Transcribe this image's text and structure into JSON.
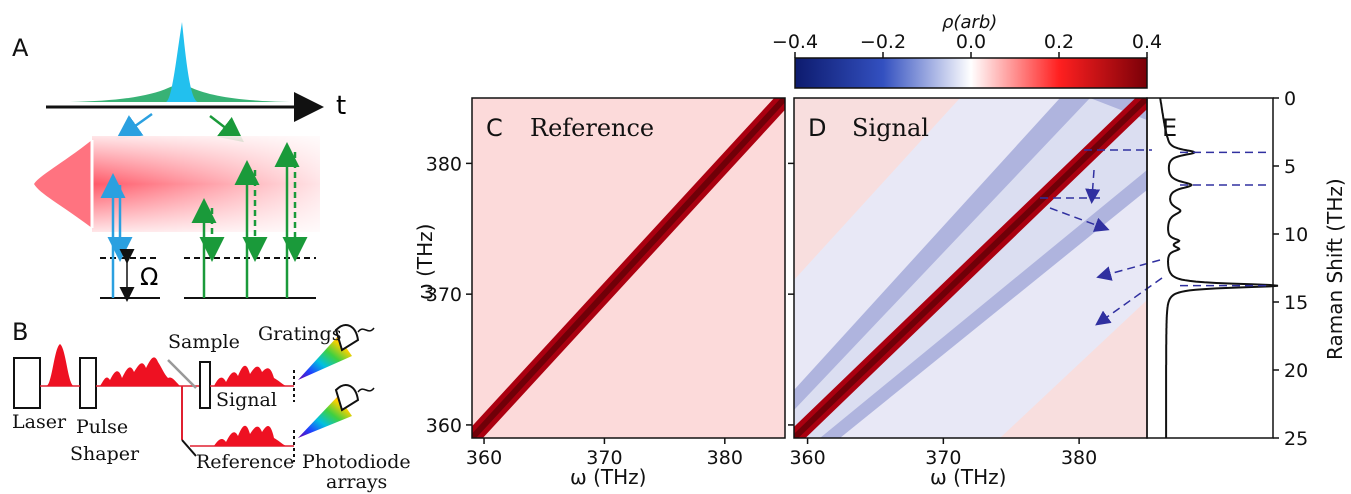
{
  "panels": {
    "a": "A",
    "b": "B",
    "c": "C",
    "d": "D",
    "e": "E"
  },
  "schematic": {
    "time_label": "t",
    "omega_label": "Ω",
    "sample": "Sample",
    "gratings": "Gratings",
    "signal": "Signal",
    "laser": "Laser",
    "pulse": "Pulse",
    "shaper": "Shaper",
    "reference": "Reference",
    "photodiode": "Photodiode",
    "arrays": "arrays"
  },
  "colorbar": {
    "label": "ρ(arb)",
    "ticks": [
      "−0.4",
      "−0.2",
      "0.0",
      "0.2",
      "0.4"
    ],
    "range": [
      -0.4,
      0.4
    ]
  },
  "panel_titles": {
    "c": "Reference",
    "d": "Signal"
  },
  "chart_data": [
    {
      "type": "heatmap",
      "title": "Reference",
      "xlabel": "ω (THz)",
      "ylabel": "ω (THz)",
      "xlim": [
        359,
        385
      ],
      "ylim": [
        359,
        385
      ],
      "xticks": [
        "360",
        "370",
        "380"
      ],
      "yticks": [
        "360",
        "370",
        "380"
      ],
      "diagonal_value": 0.4,
      "background_value": 0.05
    },
    {
      "type": "heatmap",
      "title": "Signal",
      "xlabel": "ω (THz)",
      "xlim": [
        359,
        385
      ],
      "ylim": [
        359,
        385
      ],
      "xticks": [
        "360",
        "370",
        "380"
      ],
      "diagonal_value": 0.4,
      "off_diagonal_band_value": -0.2
    },
    {
      "type": "line",
      "ylabel": "Raman Shift (THz)",
      "ylim": [
        0,
        25
      ],
      "yticks": [
        "0",
        "5",
        "10",
        "15",
        "20",
        "25"
      ],
      "peaks_thz": [
        4.0,
        6.4,
        8.3,
        10.5,
        11.1,
        13.8
      ],
      "marked_peaks_thz": [
        4.0,
        6.4,
        13.8
      ]
    }
  ]
}
